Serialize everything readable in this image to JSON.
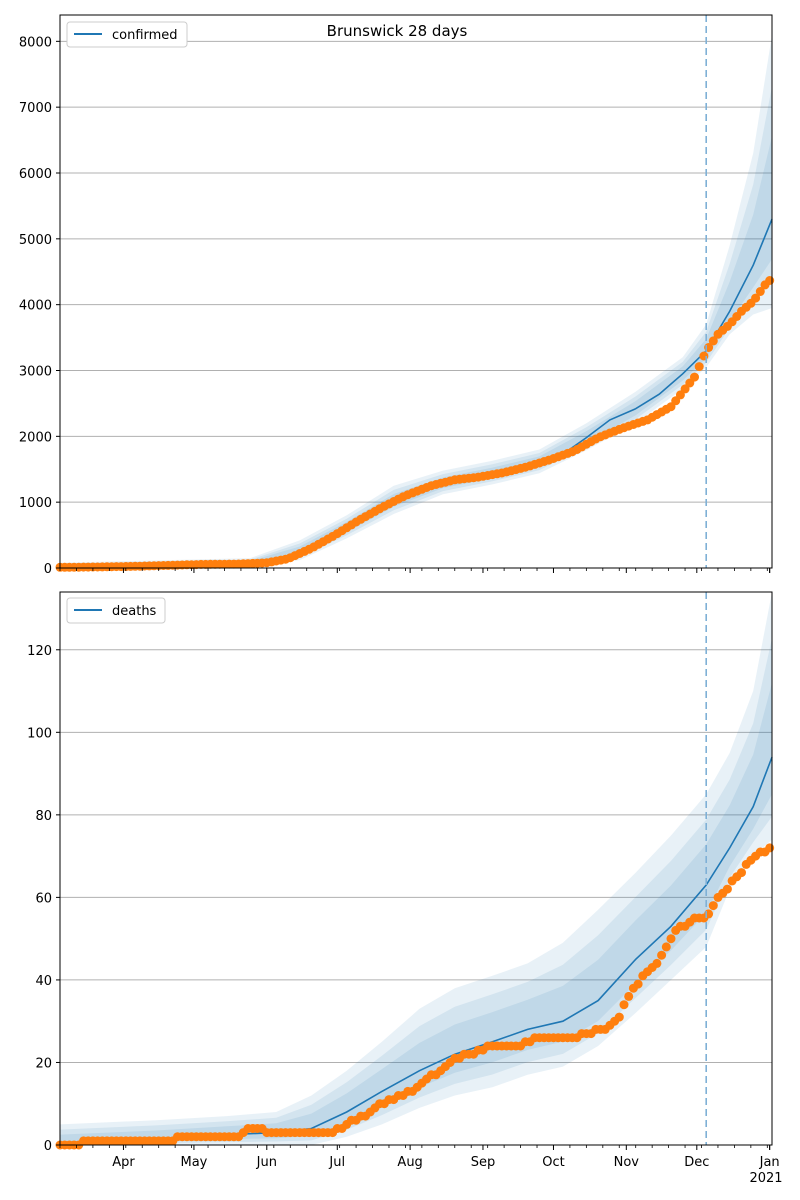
{
  "figure": {
    "title": "Brunswick 28 days"
  },
  "colors": {
    "model": "#1f77b4",
    "observed": "#ff7f0e",
    "band": "#1f77b4",
    "grid": "#b0b0b0",
    "forecast_line": "#7fb0d6"
  },
  "x_axis": {
    "month_labels": [
      "Apr",
      "May",
      "Jun",
      "Jul",
      "Aug",
      "Sep",
      "Oct",
      "Nov",
      "Dec",
      "Jan"
    ],
    "year_label": "2021"
  },
  "chart_data": [
    {
      "type": "line",
      "title": "Brunswick 28 days",
      "legend": {
        "label": "confirmed",
        "placement": "top-left"
      },
      "x_range": [
        "2020-03-05",
        "2021-01-02"
      ],
      "forecast_start": "2020-12-05",
      "ylim": [
        0,
        8400
      ],
      "yticks": [
        0,
        1000,
        2000,
        3000,
        4000,
        5000,
        6000,
        7000,
        8000
      ],
      "grid": "horizontal",
      "model_series": {
        "name": "confirmed",
        "x": [
          "2020-03-05",
          "2020-04-01",
          "2020-05-01",
          "2020-05-25",
          "2020-06-05",
          "2020-06-15",
          "2020-06-25",
          "2020-07-05",
          "2020-07-15",
          "2020-07-25",
          "2020-08-05",
          "2020-08-15",
          "2020-08-25",
          "2020-09-05",
          "2020-09-15",
          "2020-09-25",
          "2020-10-05",
          "2020-10-15",
          "2020-10-25",
          "2020-11-05",
          "2020-11-15",
          "2020-11-25",
          "2020-12-05",
          "2020-12-15",
          "2020-12-25",
          "2021-01-02"
        ],
        "y": [
          10,
          25,
          45,
          70,
          130,
          250,
          420,
          620,
          850,
          1020,
          1180,
          1290,
          1380,
          1440,
          1520,
          1610,
          1730,
          1980,
          2250,
          2420,
          2640,
          2950,
          3300,
          3900,
          4600,
          5300
        ]
      },
      "uncertainty_band": {
        "x": [
          "2020-03-05",
          "2020-05-25",
          "2020-06-15",
          "2020-07-05",
          "2020-07-25",
          "2020-08-15",
          "2020-09-05",
          "2020-09-25",
          "2020-10-15",
          "2020-11-05",
          "2020-11-25",
          "2020-12-05",
          "2020-12-15",
          "2020-12-25",
          "2021-01-02"
        ],
        "upper_outer": [
          80,
          150,
          420,
          800,
          1250,
          1480,
          1630,
          1800,
          2200,
          2680,
          3200,
          3700,
          4900,
          6300,
          8100
        ],
        "lower_outer": [
          0,
          20,
          120,
          450,
          820,
          1120,
          1270,
          1440,
          1790,
          2200,
          2720,
          3050,
          3550,
          3850,
          3950
        ]
      },
      "observed": {
        "x": [
          "2020-03-05",
          "2020-03-20",
          "2020-04-05",
          "2020-04-20",
          "2020-05-05",
          "2020-05-20",
          "2020-06-01",
          "2020-06-10",
          "2020-06-20",
          "2020-06-30",
          "2020-07-10",
          "2020-07-20",
          "2020-07-30",
          "2020-08-10",
          "2020-08-20",
          "2020-08-30",
          "2020-09-10",
          "2020-09-20",
          "2020-09-30",
          "2020-10-10",
          "2020-10-20",
          "2020-10-30",
          "2020-11-10",
          "2020-11-20",
          "2020-11-30",
          "2020-12-05",
          "2020-12-10",
          "2020-12-15",
          "2020-12-20",
          "2020-12-25",
          "2020-12-30",
          "2021-01-02"
        ],
        "y": [
          10,
          15,
          25,
          40,
          55,
          60,
          80,
          140,
          300,
          500,
          720,
          920,
          1100,
          1250,
          1340,
          1380,
          1450,
          1540,
          1650,
          1780,
          1980,
          2120,
          2250,
          2450,
          2900,
          3300,
          3550,
          3700,
          3900,
          4050,
          4300,
          4400
        ]
      }
    },
    {
      "type": "line",
      "legend": {
        "label": "deaths",
        "placement": "top-left"
      },
      "x_range": [
        "2020-03-05",
        "2021-01-02"
      ],
      "forecast_start": "2020-12-05",
      "ylim": [
        0,
        134
      ],
      "yticks": [
        0,
        20,
        40,
        60,
        80,
        100,
        120
      ],
      "grid": "horizontal",
      "model_series": {
        "name": "deaths",
        "x": [
          "2020-03-05",
          "2020-04-15",
          "2020-05-15",
          "2020-06-05",
          "2020-06-20",
          "2020-07-05",
          "2020-07-20",
          "2020-08-05",
          "2020-08-20",
          "2020-09-05",
          "2020-09-20",
          "2020-10-05",
          "2020-10-20",
          "2020-11-05",
          "2020-11-20",
          "2020-12-05",
          "2020-12-15",
          "2020-12-25",
          "2021-01-02"
        ],
        "y": [
          0.5,
          1.5,
          2.5,
          3,
          4,
          8,
          13,
          18,
          22,
          25,
          28,
          30,
          35,
          45,
          53,
          63,
          72,
          82,
          94
        ]
      },
      "uncertainty_band": {
        "x": [
          "2020-03-05",
          "2020-04-15",
          "2020-05-15",
          "2020-06-05",
          "2020-06-20",
          "2020-07-05",
          "2020-07-20",
          "2020-08-05",
          "2020-08-20",
          "2020-09-05",
          "2020-09-20",
          "2020-10-05",
          "2020-10-20",
          "2020-11-05",
          "2020-11-20",
          "2020-12-05",
          "2020-12-15",
          "2020-12-25",
          "2021-01-02"
        ],
        "upper_outer": [
          5,
          6,
          7,
          8,
          12,
          18,
          25,
          33,
          38,
          41,
          44,
          49,
          57,
          66,
          75,
          85,
          95,
          110,
          134
        ],
        "lower_outer": [
          0,
          0,
          0,
          0,
          0,
          2,
          5,
          9,
          12,
          14,
          17,
          19,
          24,
          32,
          40,
          48,
          62,
          70,
          74
        ]
      },
      "observed": {
        "x": [
          "2020-03-05",
          "2020-03-25",
          "2020-04-05",
          "2020-04-15",
          "2020-05-01",
          "2020-05-20",
          "2020-05-25",
          "2020-06-05",
          "2020-06-15",
          "2020-06-22",
          "2020-06-28",
          "2020-07-05",
          "2020-07-12",
          "2020-07-20",
          "2020-07-28",
          "2020-08-01",
          "2020-08-08",
          "2020-08-12",
          "2020-08-20",
          "2020-08-28",
          "2020-09-05",
          "2020-09-15",
          "2020-09-25",
          "2020-10-01",
          "2020-10-10",
          "2020-10-15",
          "2020-10-22",
          "2020-10-28",
          "2020-11-01",
          "2020-11-08",
          "2020-11-15",
          "2020-11-22",
          "2020-11-28",
          "2020-12-01",
          "2020-12-05",
          "2020-12-10",
          "2020-12-15",
          "2020-12-20",
          "2020-12-25",
          "2021-01-02"
        ],
        "y": [
          0,
          1,
          1,
          1,
          2,
          2,
          4,
          3,
          3,
          3,
          3,
          5,
          7,
          10,
          12,
          13,
          16,
          17,
          21,
          22,
          24,
          24,
          26,
          26,
          26,
          27,
          28,
          30,
          35,
          41,
          45,
          52,
          54,
          55,
          55,
          60,
          63,
          66,
          70,
          72
        ]
      }
    }
  ]
}
